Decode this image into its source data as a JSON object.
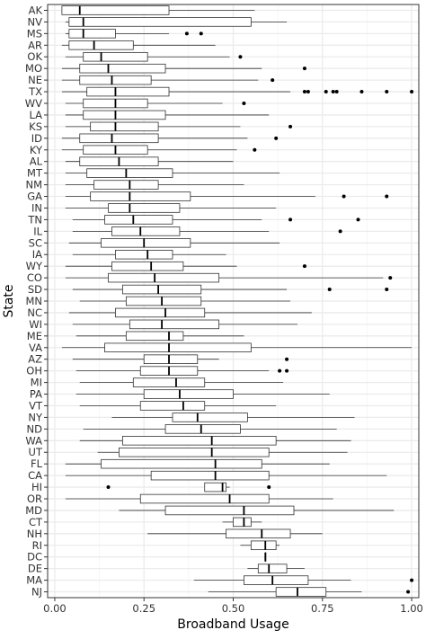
{
  "chart_data": {
    "type": "boxplot",
    "orientation": "horizontal",
    "title": "",
    "xlabel": "Broadband Usage",
    "ylabel": "State",
    "xlim": [
      -0.02,
      1.02
    ],
    "xticks": [
      0.0,
      0.25,
      0.5,
      0.75,
      1.0
    ],
    "xtick_labels": [
      "0.00",
      "0.25",
      "0.50",
      "0.75",
      "1.00"
    ],
    "grid": true,
    "theme": "bw",
    "colors": {
      "box_fill": "#ffffff",
      "line": "#333333",
      "grid_major": "#ebebeb",
      "grid_minor": "#f5f5f5",
      "panel_border": "#333333"
    },
    "boxes": [
      {
        "state": "AK",
        "min": 0.02,
        "q1": 0.02,
        "median": 0.07,
        "q3": 0.32,
        "max": 0.56,
        "outliers": []
      },
      {
        "state": "NV",
        "min": 0.03,
        "q1": 0.04,
        "median": 0.08,
        "q3": 0.55,
        "max": 0.65,
        "outliers": []
      },
      {
        "state": "MS",
        "min": 0.03,
        "q1": 0.04,
        "median": 0.08,
        "q3": 0.17,
        "max": 0.32,
        "outliers": [
          0.37,
          0.41
        ]
      },
      {
        "state": "AR",
        "min": 0.02,
        "q1": 0.04,
        "median": 0.11,
        "q3": 0.22,
        "max": 0.45,
        "outliers": []
      },
      {
        "state": "OK",
        "min": 0.03,
        "q1": 0.08,
        "median": 0.13,
        "q3": 0.26,
        "max": 0.49,
        "outliers": [
          0.52
        ]
      },
      {
        "state": "MO",
        "min": 0.02,
        "q1": 0.07,
        "median": 0.15,
        "q3": 0.31,
        "max": 0.58,
        "outliers": [
          0.7
        ]
      },
      {
        "state": "NE",
        "min": 0.02,
        "q1": 0.07,
        "median": 0.16,
        "q3": 0.27,
        "max": 0.57,
        "outliers": [
          0.61
        ]
      },
      {
        "state": "TX",
        "min": 0.02,
        "q1": 0.09,
        "median": 0.17,
        "q3": 0.32,
        "max": 0.66,
        "outliers": [
          0.7,
          0.71,
          0.76,
          0.78,
          0.79,
          0.86,
          0.93,
          1.0
        ]
      },
      {
        "state": "WV",
        "min": 0.03,
        "q1": 0.08,
        "median": 0.17,
        "q3": 0.26,
        "max": 0.47,
        "outliers": [
          0.53
        ]
      },
      {
        "state": "LA",
        "min": 0.03,
        "q1": 0.08,
        "median": 0.17,
        "q3": 0.31,
        "max": 0.6,
        "outliers": []
      },
      {
        "state": "KS",
        "min": 0.03,
        "q1": 0.1,
        "median": 0.17,
        "q3": 0.29,
        "max": 0.52,
        "outliers": [
          0.66
        ]
      },
      {
        "state": "ID",
        "min": 0.02,
        "q1": 0.07,
        "median": 0.16,
        "q3": 0.29,
        "max": 0.54,
        "outliers": [
          0.62
        ]
      },
      {
        "state": "KY",
        "min": 0.02,
        "q1": 0.08,
        "median": 0.17,
        "q3": 0.26,
        "max": 0.51,
        "outliers": [
          0.56
        ]
      },
      {
        "state": "AL",
        "min": 0.03,
        "q1": 0.07,
        "median": 0.18,
        "q3": 0.29,
        "max": 0.5,
        "outliers": []
      },
      {
        "state": "MT",
        "min": 0.03,
        "q1": 0.09,
        "median": 0.2,
        "q3": 0.33,
        "max": 0.63,
        "outliers": []
      },
      {
        "state": "NM",
        "min": 0.03,
        "q1": 0.11,
        "median": 0.21,
        "q3": 0.29,
        "max": 0.53,
        "outliers": []
      },
      {
        "state": "GA",
        "min": 0.03,
        "q1": 0.1,
        "median": 0.21,
        "q3": 0.38,
        "max": 0.73,
        "outliers": [
          0.81,
          0.93
        ]
      },
      {
        "state": "IN",
        "min": 0.03,
        "q1": 0.15,
        "median": 0.21,
        "q3": 0.35,
        "max": 0.62,
        "outliers": []
      },
      {
        "state": "TN",
        "min": 0.05,
        "q1": 0.14,
        "median": 0.22,
        "q3": 0.33,
        "max": 0.58,
        "outliers": [
          0.66,
          0.85
        ]
      },
      {
        "state": "IL",
        "min": 0.05,
        "q1": 0.16,
        "median": 0.24,
        "q3": 0.35,
        "max": 0.6,
        "outliers": [
          0.8
        ]
      },
      {
        "state": "SC",
        "min": 0.04,
        "q1": 0.13,
        "median": 0.25,
        "q3": 0.38,
        "max": 0.63,
        "outliers": []
      },
      {
        "state": "IA",
        "min": 0.05,
        "q1": 0.17,
        "median": 0.26,
        "q3": 0.33,
        "max": 0.48,
        "outliers": []
      },
      {
        "state": "WY",
        "min": 0.03,
        "q1": 0.16,
        "median": 0.27,
        "q3": 0.36,
        "max": 0.51,
        "outliers": [
          0.7
        ]
      },
      {
        "state": "CO",
        "min": 0.03,
        "q1": 0.15,
        "median": 0.28,
        "q3": 0.46,
        "max": 0.92,
        "outliers": [
          0.94
        ]
      },
      {
        "state": "SD",
        "min": 0.05,
        "q1": 0.19,
        "median": 0.29,
        "q3": 0.41,
        "max": 0.65,
        "outliers": [
          0.77,
          0.93
        ]
      },
      {
        "state": "MN",
        "min": 0.07,
        "q1": 0.2,
        "median": 0.3,
        "q3": 0.41,
        "max": 0.66,
        "outliers": []
      },
      {
        "state": "NC",
        "min": 0.04,
        "q1": 0.17,
        "median": 0.31,
        "q3": 0.42,
        "max": 0.72,
        "outliers": []
      },
      {
        "state": "WI",
        "min": 0.05,
        "q1": 0.21,
        "median": 0.3,
        "q3": 0.46,
        "max": 0.68,
        "outliers": []
      },
      {
        "state": "ME",
        "min": 0.06,
        "q1": 0.2,
        "median": 0.32,
        "q3": 0.36,
        "max": 0.53,
        "outliers": []
      },
      {
        "state": "VA",
        "min": 0.02,
        "q1": 0.14,
        "median": 0.32,
        "q3": 0.55,
        "max": 1.0,
        "outliers": []
      },
      {
        "state": "AZ",
        "min": 0.05,
        "q1": 0.25,
        "median": 0.32,
        "q3": 0.4,
        "max": 0.46,
        "outliers": [
          0.65
        ]
      },
      {
        "state": "OH",
        "min": 0.06,
        "q1": 0.24,
        "median": 0.32,
        "q3": 0.4,
        "max": 0.6,
        "outliers": [
          0.63,
          0.65
        ]
      },
      {
        "state": "MI",
        "min": 0.07,
        "q1": 0.22,
        "median": 0.34,
        "q3": 0.42,
        "max": 0.64,
        "outliers": []
      },
      {
        "state": "PA",
        "min": 0.06,
        "q1": 0.25,
        "median": 0.35,
        "q3": 0.5,
        "max": 0.77,
        "outliers": []
      },
      {
        "state": "VT",
        "min": 0.07,
        "q1": 0.24,
        "median": 0.36,
        "q3": 0.42,
        "max": 0.62,
        "outliers": []
      },
      {
        "state": "NY",
        "min": 0.16,
        "q1": 0.33,
        "median": 0.4,
        "q3": 0.54,
        "max": 0.84,
        "outliers": []
      },
      {
        "state": "ND",
        "min": 0.08,
        "q1": 0.31,
        "median": 0.41,
        "q3": 0.52,
        "max": 0.79,
        "outliers": []
      },
      {
        "state": "WA",
        "min": 0.07,
        "q1": 0.19,
        "median": 0.44,
        "q3": 0.62,
        "max": 0.83,
        "outliers": []
      },
      {
        "state": "UT",
        "min": 0.12,
        "q1": 0.18,
        "median": 0.44,
        "q3": 0.6,
        "max": 0.82,
        "outliers": []
      },
      {
        "state": "FL",
        "min": 0.03,
        "q1": 0.13,
        "median": 0.45,
        "q3": 0.58,
        "max": 0.77,
        "outliers": []
      },
      {
        "state": "CA",
        "min": 0.03,
        "q1": 0.27,
        "median": 0.45,
        "q3": 0.6,
        "max": 0.93,
        "outliers": []
      },
      {
        "state": "HI",
        "min": 0.42,
        "q1": 0.42,
        "median": 0.47,
        "q3": 0.48,
        "max": 0.49,
        "outliers": [
          0.15,
          0.6
        ]
      },
      {
        "state": "OR",
        "min": 0.03,
        "q1": 0.24,
        "median": 0.49,
        "q3": 0.6,
        "max": 0.78,
        "outliers": []
      },
      {
        "state": "MD",
        "min": 0.18,
        "q1": 0.31,
        "median": 0.53,
        "q3": 0.67,
        "max": 0.95,
        "outliers": []
      },
      {
        "state": "CT",
        "min": 0.47,
        "q1": 0.5,
        "median": 0.53,
        "q3": 0.55,
        "max": 0.58,
        "outliers": []
      },
      {
        "state": "NH",
        "min": 0.26,
        "q1": 0.48,
        "median": 0.58,
        "q3": 0.66,
        "max": 0.75,
        "outliers": []
      },
      {
        "state": "RI",
        "min": 0.52,
        "q1": 0.55,
        "median": 0.59,
        "q3": 0.62,
        "max": 0.63,
        "outliers": []
      },
      {
        "state": "DC",
        "min": 0.59,
        "q1": 0.59,
        "median": 0.59,
        "q3": 0.59,
        "max": 0.59,
        "outliers": []
      },
      {
        "state": "DE",
        "min": 0.54,
        "q1": 0.57,
        "median": 0.6,
        "q3": 0.65,
        "max": 0.7,
        "outliers": []
      },
      {
        "state": "MA",
        "min": 0.39,
        "q1": 0.53,
        "median": 0.61,
        "q3": 0.71,
        "max": 0.83,
        "outliers": [
          1.0
        ]
      },
      {
        "state": "NJ",
        "min": 0.43,
        "q1": 0.62,
        "median": 0.68,
        "q3": 0.76,
        "max": 0.86,
        "outliers": [
          0.99
        ]
      }
    ]
  }
}
